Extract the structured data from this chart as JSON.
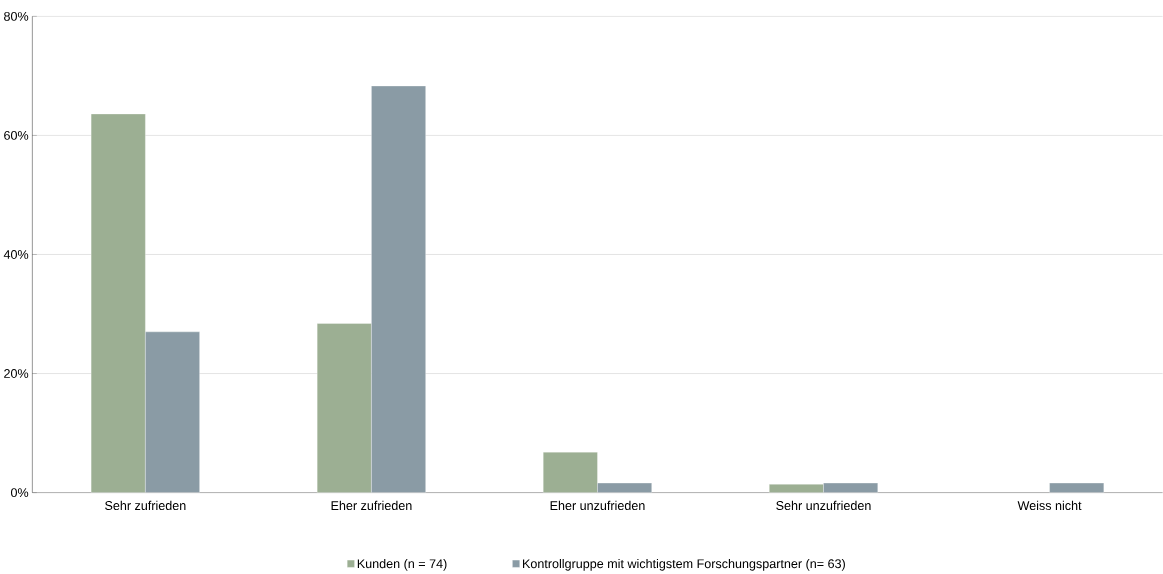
{
  "chart_data": {
    "type": "bar",
    "categories": [
      "Sehr zufrieden",
      "Eher zufrieden",
      "Eher unzufrieden",
      "Sehr unzufrieden",
      "Weiss nicht"
    ],
    "series": [
      {
        "name": "Kunden (n = 74)",
        "color": "#9caf93",
        "values": [
          63.6,
          28.4,
          6.8,
          1.4,
          null
        ]
      },
      {
        "name": "Kontrollgruppe mit wichtigstem Forschungspartner (n= 63)",
        "color": "#8a9ba5",
        "values": [
          27.0,
          68.3,
          1.6,
          1.6,
          1.6
        ]
      }
    ],
    "ylim": [
      0,
      80
    ],
    "yticks": [
      {
        "value": 0,
        "label": "0%"
      },
      {
        "value": 20,
        "label": "20%"
      },
      {
        "value": 40,
        "label": "40%"
      },
      {
        "value": 60,
        "label": "60%"
      },
      {
        "value": 80,
        "label": "80%"
      }
    ],
    "grid": "y",
    "legend": "bottom"
  }
}
